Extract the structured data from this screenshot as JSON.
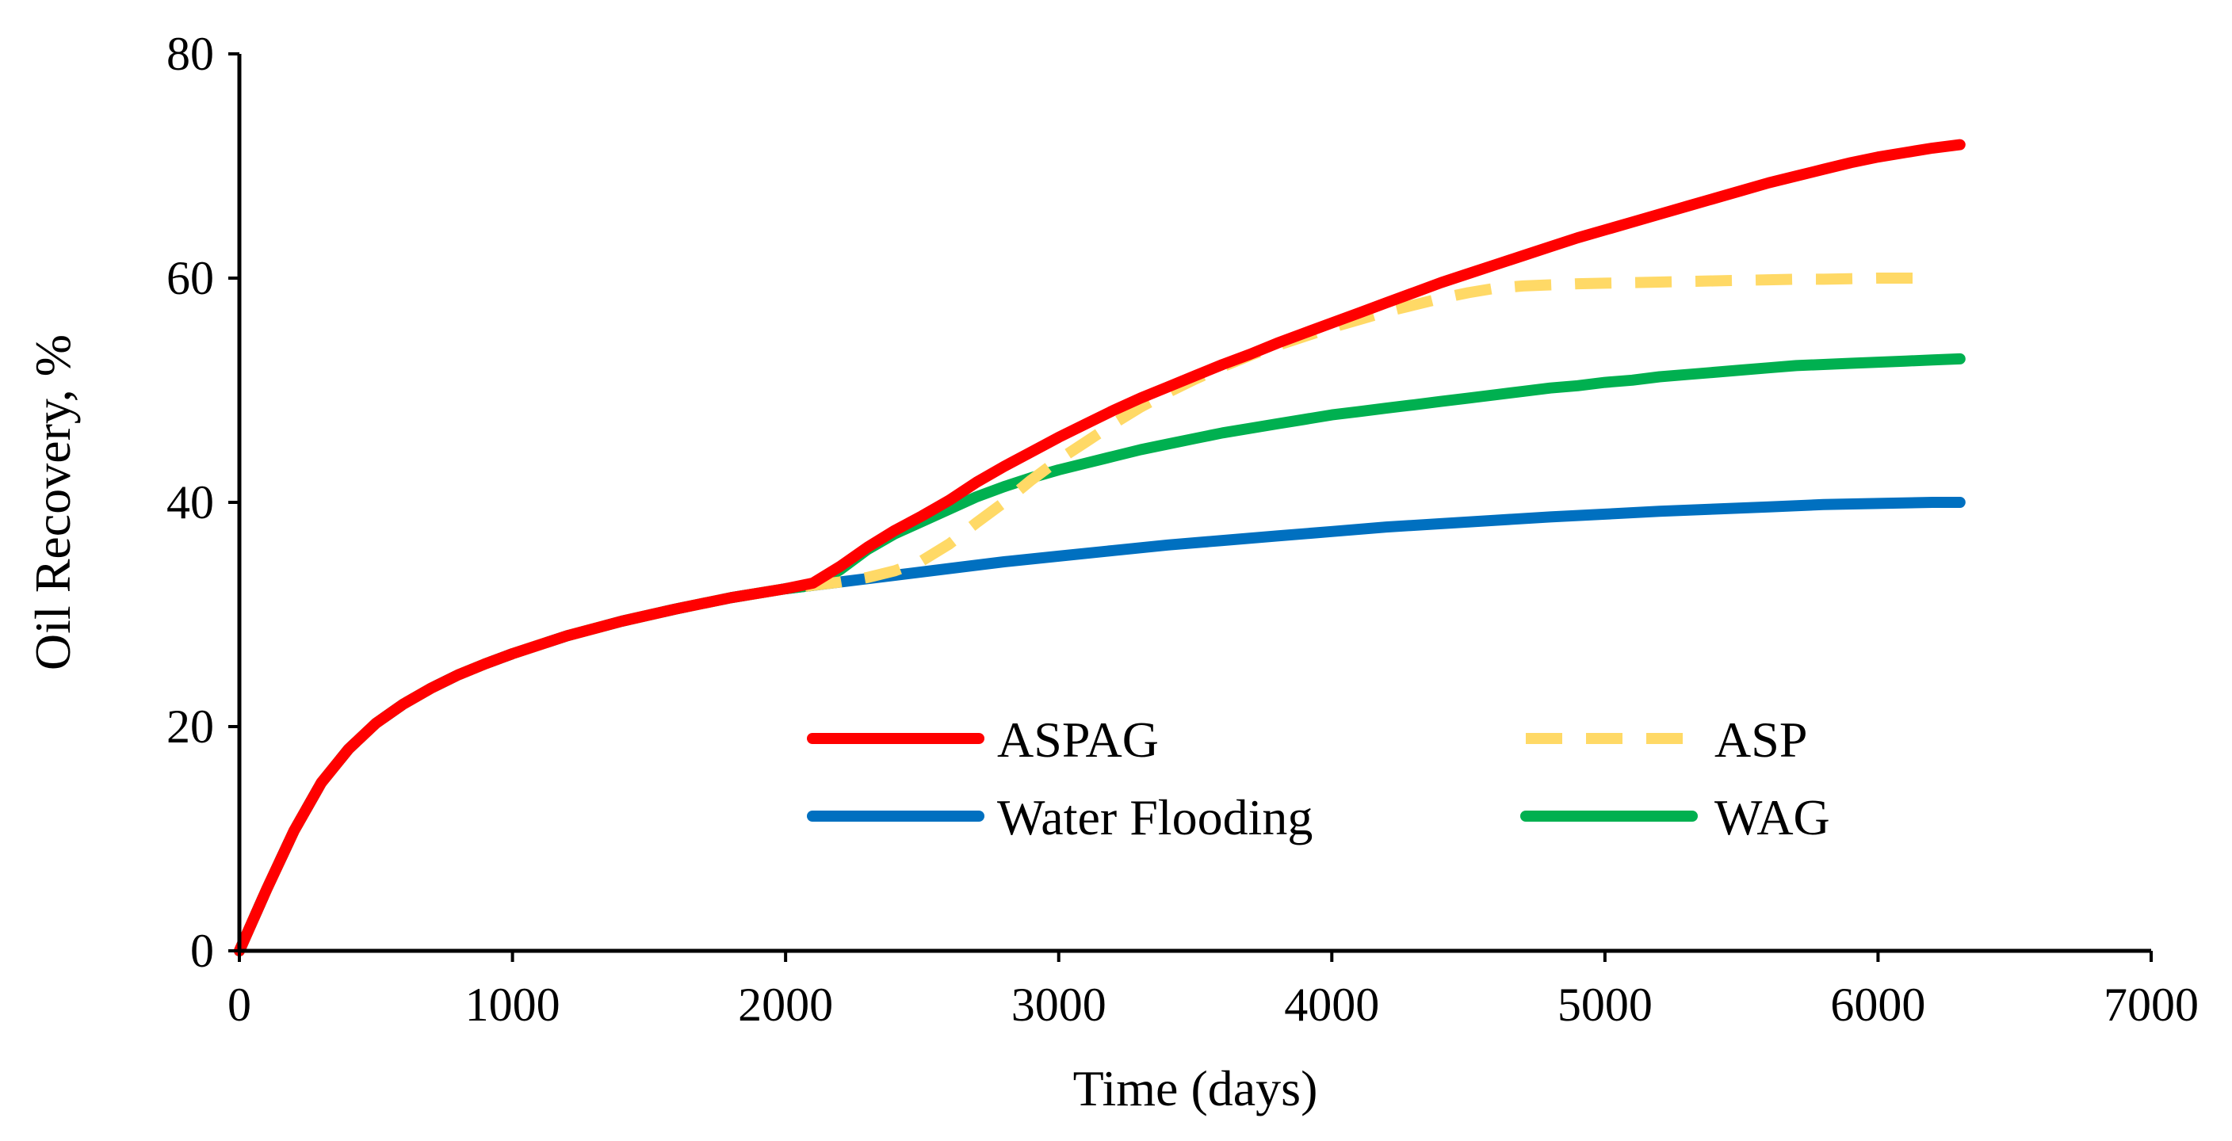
{
  "chart_data": {
    "type": "line",
    "xlabel": "Time (days)",
    "ylabel": "Oil Recovery, %",
    "xlim": [
      0,
      7000
    ],
    "ylim": [
      0,
      80
    ],
    "x_ticks": [
      0,
      1000,
      2000,
      3000,
      4000,
      5000,
      6000,
      7000
    ],
    "y_ticks": [
      0,
      20,
      40,
      60,
      80
    ],
    "grid": false,
    "legend_placement": "lower-center, two columns",
    "series": [
      {
        "name": "ASPAG",
        "color": "#ff0000",
        "dash": "solid",
        "x": [
          0,
          100,
          200,
          300,
          400,
          500,
          600,
          700,
          800,
          900,
          1000,
          1200,
          1400,
          1600,
          1800,
          2000,
          2100,
          2200,
          2300,
          2400,
          2500,
          2600,
          2700,
          2800,
          2900,
          3000,
          3100,
          3200,
          3300,
          3400,
          3500,
          3600,
          3700,
          3800,
          3900,
          4000,
          4100,
          4200,
          4300,
          4400,
          4500,
          4600,
          4700,
          4800,
          4900,
          5000,
          5100,
          5200,
          5300,
          5400,
          5500,
          5600,
          5700,
          5800,
          5900,
          6000,
          6100,
          6200,
          6300
        ],
        "y": [
          0,
          5.5,
          10.7,
          15.0,
          18.0,
          20.3,
          22.0,
          23.4,
          24.6,
          25.6,
          26.5,
          28.1,
          29.4,
          30.5,
          31.5,
          32.3,
          32.8,
          34.3,
          36.0,
          37.5,
          38.8,
          40.2,
          41.8,
          43.2,
          44.5,
          45.8,
          47.0,
          48.2,
          49.3,
          50.3,
          51.3,
          52.3,
          53.2,
          54.2,
          55.1,
          56.0,
          56.9,
          57.8,
          58.7,
          59.6,
          60.4,
          61.2,
          62.0,
          62.8,
          63.6,
          64.3,
          65.0,
          65.7,
          66.4,
          67.1,
          67.8,
          68.5,
          69.1,
          69.7,
          70.3,
          70.8,
          71.2,
          71.6,
          71.9
        ]
      },
      {
        "name": "ASP",
        "color": "#ffd966",
        "dash": "dashed",
        "x": [
          0,
          100,
          200,
          300,
          400,
          500,
          600,
          700,
          800,
          900,
          1000,
          1200,
          1400,
          1600,
          1800,
          2000,
          2100,
          2200,
          2300,
          2400,
          2500,
          2600,
          2700,
          2800,
          2900,
          3000,
          3100,
          3200,
          3300,
          3400,
          3500,
          3600,
          3700,
          3800,
          3900,
          4000,
          4100,
          4200,
          4300,
          4400,
          4500,
          4600,
          4700,
          4800,
          4900,
          5000,
          5100,
          5200,
          5300,
          5400,
          5500,
          5600,
          5700,
          5800,
          5900,
          6000,
          6100,
          6200
        ],
        "y": [
          0,
          5.5,
          10.7,
          15.0,
          18.0,
          20.3,
          22.0,
          23.4,
          24.6,
          25.6,
          26.5,
          28.1,
          29.4,
          30.5,
          31.5,
          32.3,
          32.6,
          32.9,
          33.3,
          33.9,
          34.8,
          36.3,
          38.2,
          40.0,
          42.0,
          43.8,
          45.4,
          47.0,
          48.5,
          49.8,
          51.0,
          52.1,
          53.1,
          54.0,
          54.8,
          55.6,
          56.3,
          57.0,
          57.6,
          58.2,
          58.7,
          59.1,
          59.3,
          59.4,
          59.5,
          59.55,
          59.6,
          59.65,
          59.7,
          59.75,
          59.8,
          59.85,
          59.9,
          59.9,
          59.95,
          60.0,
          60.0,
          60.0
        ]
      },
      {
        "name": "Water Flooding",
        "color": "#0070c0",
        "dash": "solid",
        "x": [
          0,
          100,
          200,
          300,
          400,
          500,
          600,
          700,
          800,
          900,
          1000,
          1200,
          1400,
          1600,
          1800,
          2000,
          2200,
          2400,
          2600,
          2800,
          3000,
          3200,
          3400,
          3600,
          3800,
          4000,
          4200,
          4400,
          4600,
          4800,
          5000,
          5200,
          5400,
          5600,
          5800,
          6000,
          6200,
          6300
        ],
        "y": [
          0,
          5.5,
          10.7,
          15.0,
          18.0,
          20.3,
          22.0,
          23.4,
          24.6,
          25.6,
          26.5,
          28.1,
          29.4,
          30.5,
          31.5,
          32.3,
          32.9,
          33.5,
          34.1,
          34.7,
          35.2,
          35.7,
          36.2,
          36.6,
          37.0,
          37.4,
          37.8,
          38.1,
          38.4,
          38.7,
          38.95,
          39.2,
          39.4,
          39.6,
          39.8,
          39.9,
          40.0,
          40.0
        ]
      },
      {
        "name": "WAG",
        "color": "#00b050",
        "dash": "solid",
        "x": [
          0,
          100,
          200,
          300,
          400,
          500,
          600,
          700,
          800,
          900,
          1000,
          1200,
          1400,
          1600,
          1800,
          2000,
          2100,
          2200,
          2300,
          2400,
          2500,
          2600,
          2700,
          2800,
          2900,
          3000,
          3100,
          3200,
          3300,
          3400,
          3500,
          3600,
          3700,
          3800,
          3900,
          4000,
          4100,
          4200,
          4300,
          4400,
          4500,
          4600,
          4700,
          4800,
          4900,
          5000,
          5100,
          5200,
          5300,
          5400,
          5500,
          5600,
          5700,
          5800,
          5900,
          6000,
          6100,
          6200,
          6300
        ],
        "y": [
          0,
          5.5,
          10.7,
          15.0,
          18.0,
          20.3,
          22.0,
          23.4,
          24.6,
          25.6,
          26.5,
          28.1,
          29.4,
          30.5,
          31.5,
          32.3,
          32.6,
          34.0,
          35.8,
          37.2,
          38.3,
          39.4,
          40.5,
          41.4,
          42.2,
          42.9,
          43.5,
          44.1,
          44.7,
          45.2,
          45.7,
          46.2,
          46.6,
          47.0,
          47.4,
          47.8,
          48.1,
          48.4,
          48.7,
          49.0,
          49.3,
          49.6,
          49.9,
          50.2,
          50.4,
          50.7,
          50.9,
          51.2,
          51.4,
          51.6,
          51.8,
          52.0,
          52.2,
          52.3,
          52.4,
          52.5,
          52.6,
          52.7,
          52.8
        ]
      }
    ]
  }
}
